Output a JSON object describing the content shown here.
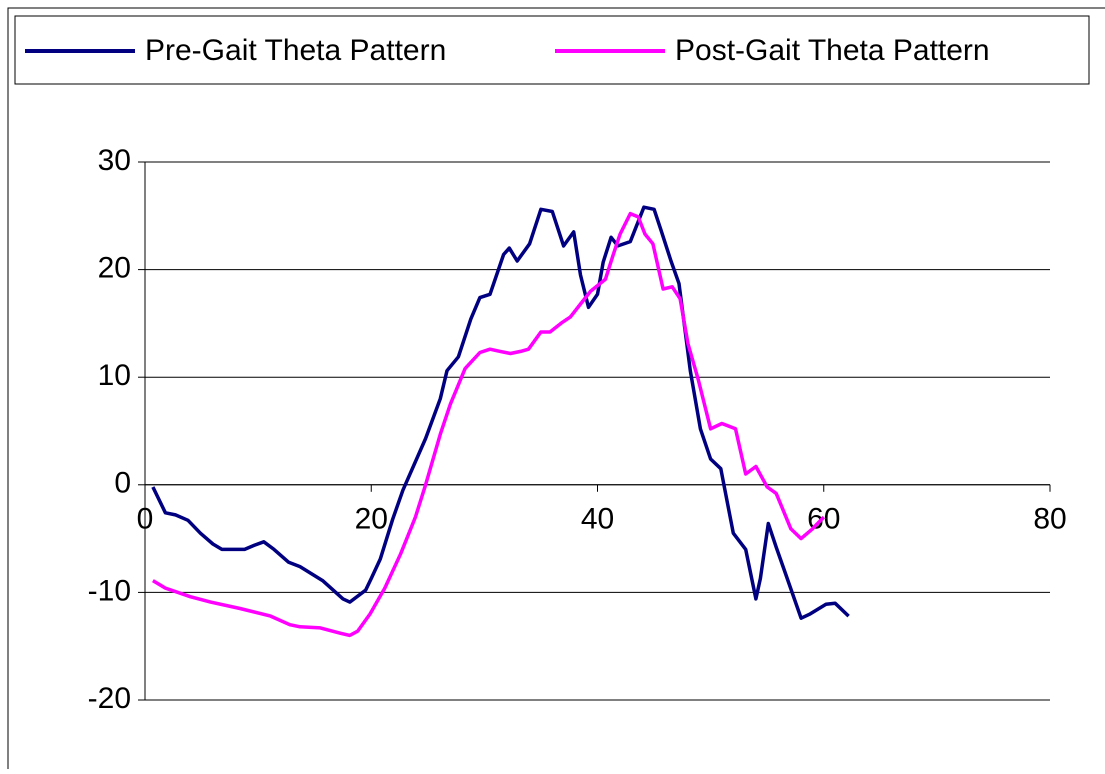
{
  "chart_data": {
    "type": "line",
    "xlim": [
      0,
      80
    ],
    "xticks": [
      0,
      20,
      40,
      60,
      80
    ],
    "ylim": [
      -20,
      30
    ],
    "yticks": [
      -20,
      -10,
      0,
      10,
      20,
      30
    ],
    "grid": true,
    "legend": "top",
    "series": [
      {
        "name": "Pre-Gait Theta Pattern",
        "color": "#000080",
        "x": [
          0.7,
          1.8,
          2.7,
          3.8,
          4.9,
          6,
          6.8,
          8.8,
          9.7,
          10.5,
          11.4,
          12.7,
          13.7,
          15.7,
          17.5,
          18.1,
          19.5,
          20,
          20.8,
          21.9,
          22.8,
          24.8,
          26.1,
          26.7,
          27.7,
          28.8,
          29.6,
          30.5,
          31.7,
          32.2,
          32.9,
          34,
          35,
          36,
          37,
          37.9,
          38.5,
          39.2,
          40,
          40.5,
          41.2,
          41.8,
          42.9,
          44.1,
          45,
          45.6,
          46.5,
          47.2,
          48.2,
          49.1,
          50,
          50.9,
          52,
          53.1,
          54,
          54.4,
          55.1,
          55.8,
          56.6,
          58,
          58.8,
          60.2,
          61,
          62.2
        ],
        "values": [
          -0.2,
          -2.6,
          -2.8,
          -3.3,
          -4.5,
          -5.5,
          -6,
          -6,
          -5.6,
          -5.3,
          -6,
          -7.2,
          -7.6,
          -8.9,
          -10.6,
          -10.9,
          -9.8,
          -8.7,
          -6.9,
          -3.2,
          -0.5,
          4.3,
          8,
          10.6,
          11.9,
          15.4,
          17.4,
          17.7,
          21.4,
          22,
          20.8,
          22.4,
          25.6,
          25.4,
          22.2,
          23.5,
          19.5,
          16.5,
          17.7,
          20.7,
          23,
          22.2,
          22.6,
          25.8,
          25.6,
          23.7,
          20.8,
          18.7,
          10.6,
          5.2,
          2.4,
          1.5,
          -4.5,
          -6,
          -10.6,
          -8.7,
          -3.6,
          -5.8,
          -8.2,
          -12.4,
          -12,
          -11.1,
          -11,
          -12.2
        ]
      },
      {
        "name": "Post-Gait Theta Pattern",
        "color": "#ff00ff",
        "x": [
          0.7,
          1.8,
          4,
          5.8,
          8.4,
          11.1,
          12.8,
          13.7,
          15.5,
          17.3,
          18.1,
          18.8,
          19.9,
          21.2,
          22.6,
          23.9,
          24.8,
          26.1,
          27,
          28.3,
          29.6,
          30.5,
          31.4,
          32.3,
          33.2,
          33.9,
          35,
          35.8,
          36.9,
          37.6,
          38.5,
          39.4,
          40.7,
          41.4,
          42,
          42.9,
          43.6,
          44.2,
          44.9,
          45.8,
          46.6,
          47.3,
          48,
          48.9,
          50,
          51,
          52.2,
          53.1,
          54,
          55,
          55.8,
          57.1,
          58,
          59,
          60
        ],
        "values": [
          -8.9,
          -9.6,
          -10.4,
          -10.9,
          -11.5,
          -12.2,
          -13,
          -13.2,
          -13.3,
          -13.8,
          -14,
          -13.6,
          -12,
          -9.6,
          -6.4,
          -3,
          0,
          4.7,
          7.5,
          10.8,
          12.3,
          12.6,
          12.4,
          12.2,
          12.4,
          12.6,
          14.2,
          14.2,
          15.1,
          15.6,
          16.8,
          18,
          19.1,
          21.4,
          23.3,
          25.2,
          24.9,
          23.3,
          22.4,
          18.2,
          18.4,
          17.3,
          13.1,
          9.8,
          5.2,
          5.7,
          5.2,
          1,
          1.7,
          -0.2,
          -0.8,
          -4.1,
          -5,
          -4.1,
          -3
        ]
      }
    ]
  }
}
